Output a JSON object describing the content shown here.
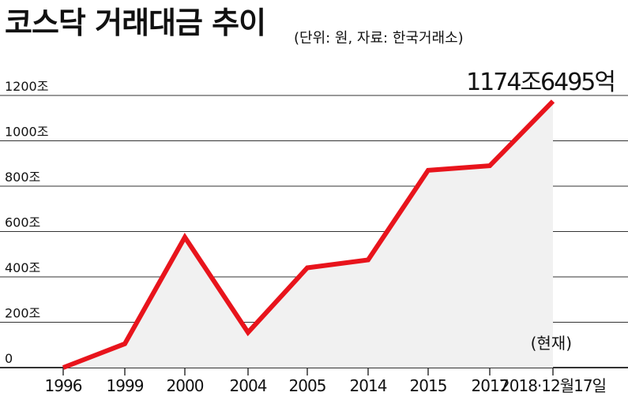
{
  "title": "코스닥 거래대금 추이",
  "subtitle": "(단위: 원, 자료: 한국거래소)",
  "chart_data": {
    "type": "area",
    "title": "코스닥 거래대금 추이",
    "subtitle": "(단위: 원, 자료: 한국거래소)",
    "xlabel": "",
    "ylabel": "",
    "categories": [
      "1996",
      "1999",
      "2000",
      "2004",
      "2005",
      "2014",
      "2015",
      "2017",
      "2018·12월17일"
    ],
    "series": [
      {
        "values": [
          0,
          105,
          575,
          155,
          440,
          475,
          870,
          890,
          1174.6495
        ]
      }
    ],
    "y_ticks": [
      0,
      200,
      400,
      600,
      800,
      1000,
      1200
    ],
    "y_tick_labels": [
      "0",
      "200조",
      "400조",
      "600조",
      "800조",
      "1000조",
      "1200조"
    ],
    "ylim": [
      0,
      1200
    ],
    "grid": true,
    "legend": "none",
    "annotations": {
      "last_value_label": "1174조6495억",
      "last_note": "(현재)"
    },
    "colors": {
      "line": "#e8141c",
      "area": "#f1f1f1",
      "grid": "#333333"
    }
  }
}
